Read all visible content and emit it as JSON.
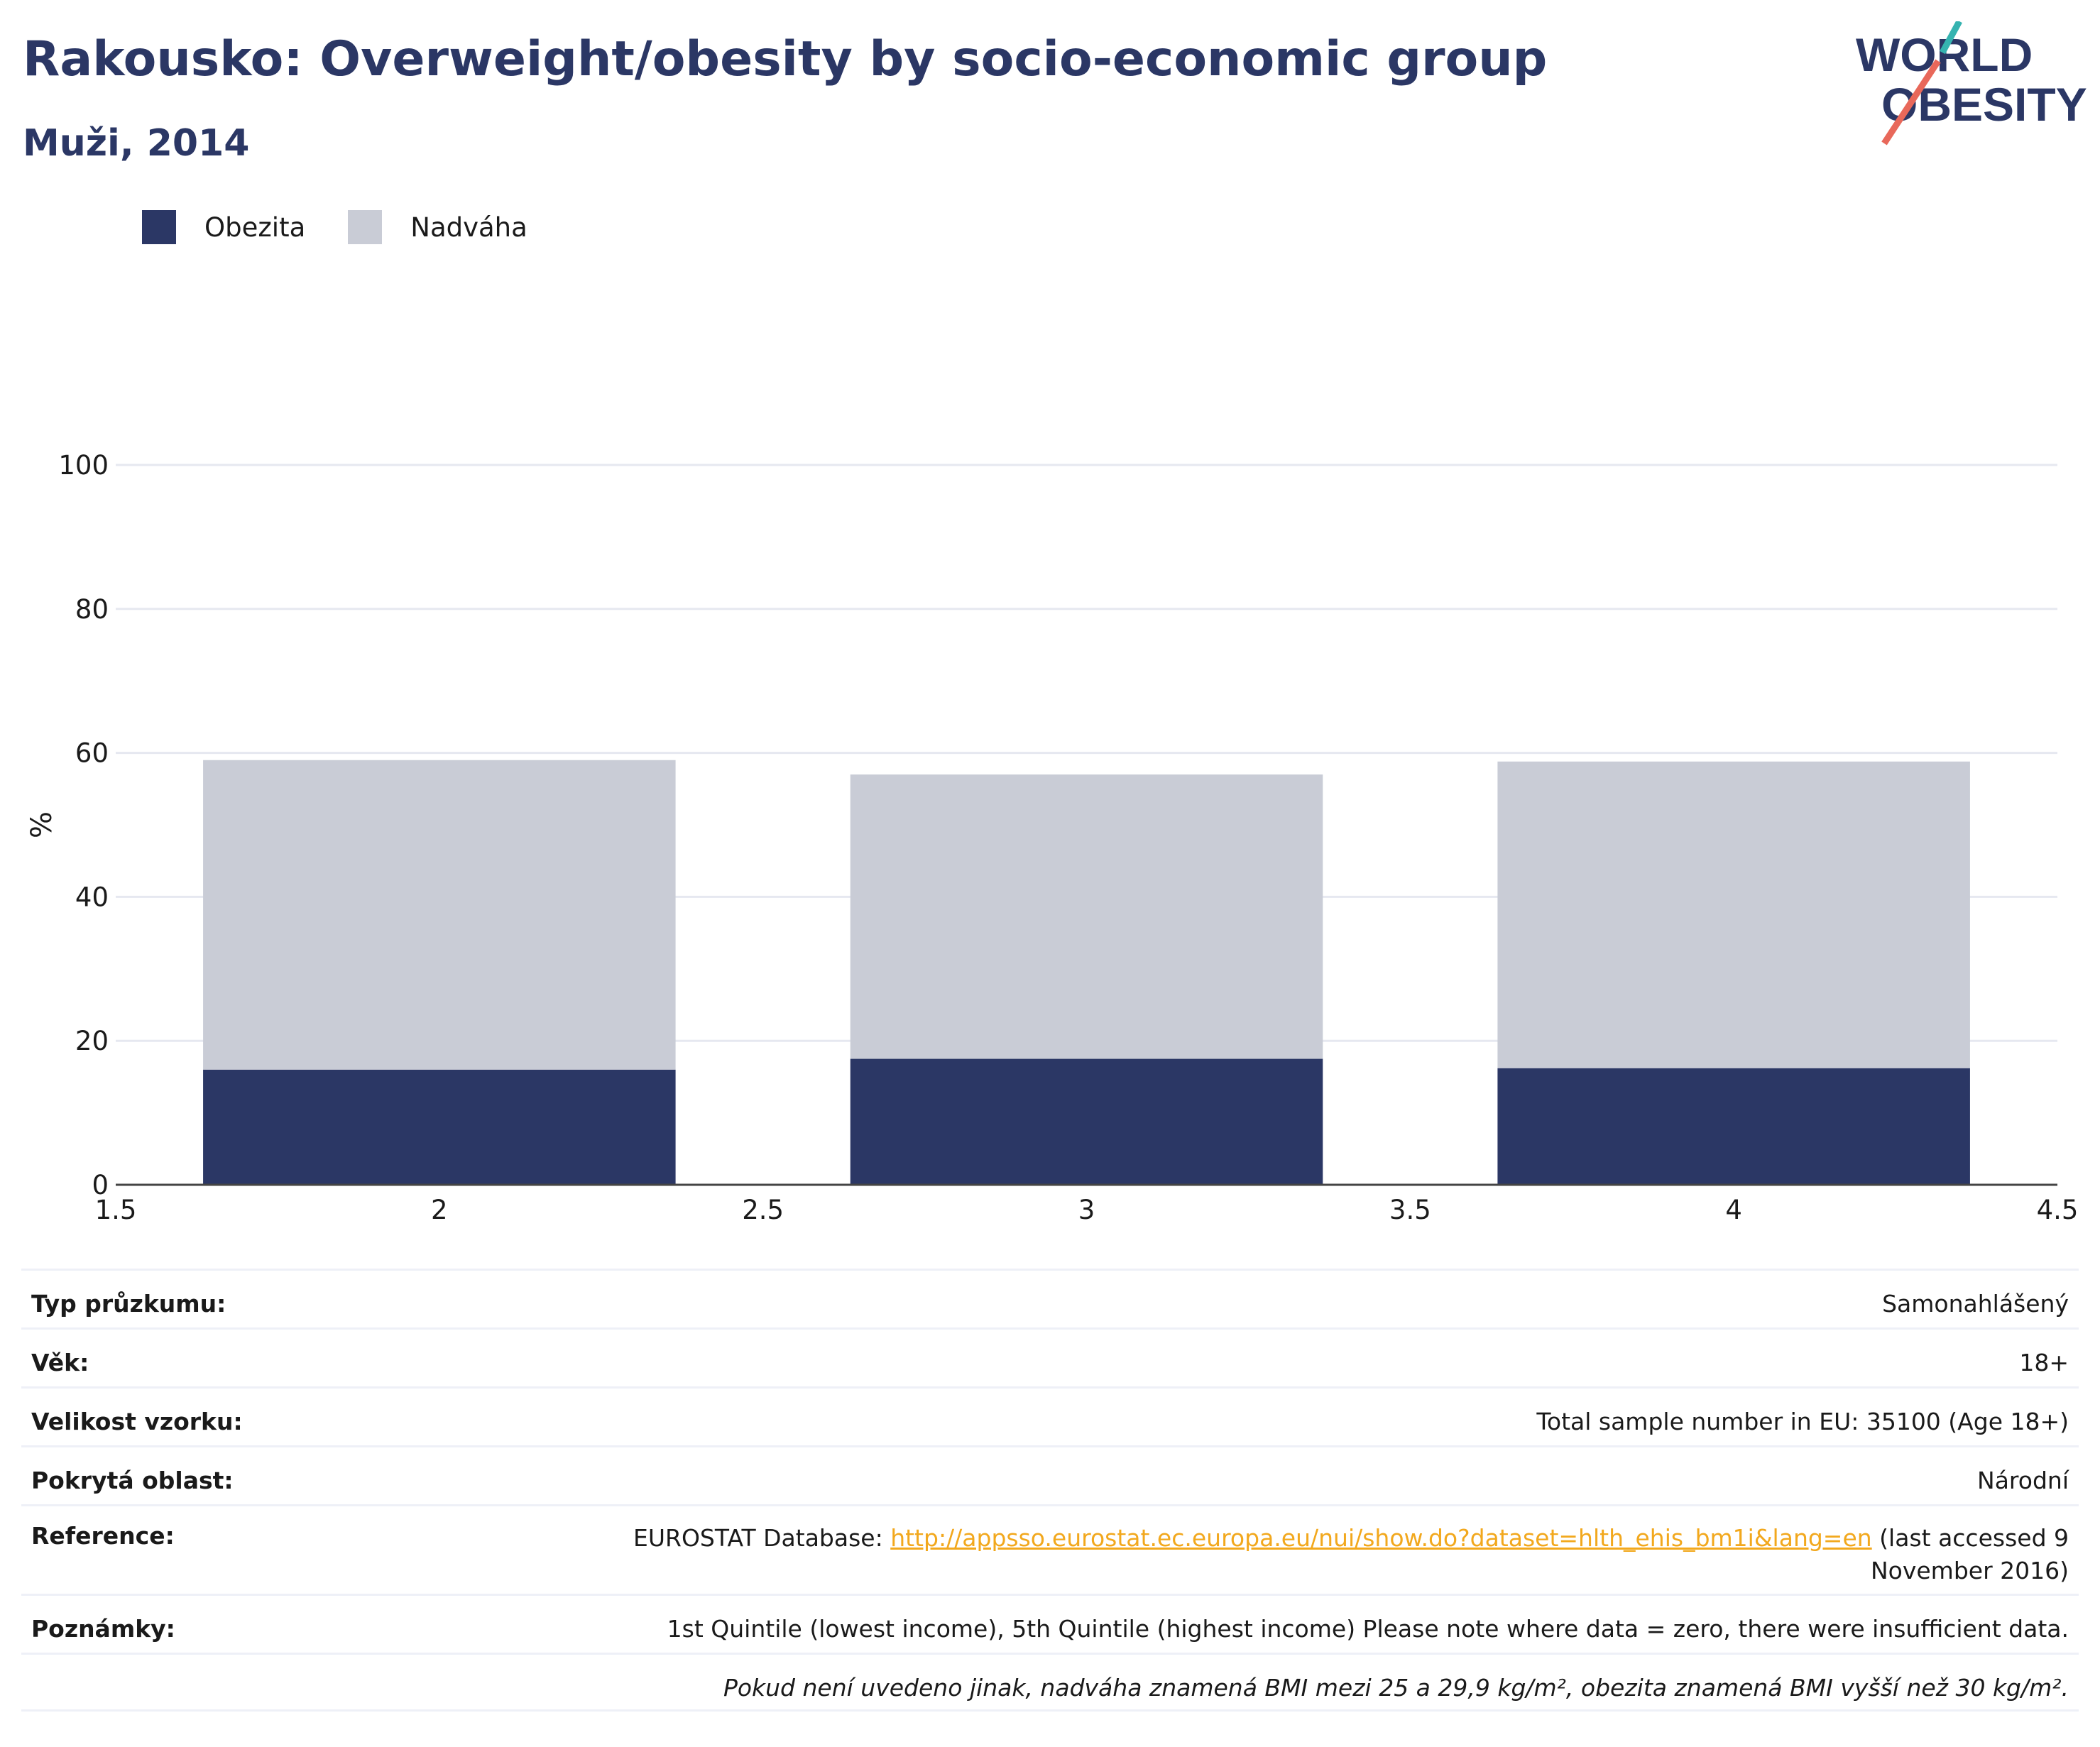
{
  "header": {
    "title": "Rakousko: Overweight/obesity by socio-economic group",
    "subtitle": "Muži, 2014",
    "logo_line1": "WORLD",
    "logo_line2": "OBESITY"
  },
  "legend": [
    {
      "label": "Obezita",
      "color": "#2b3765"
    },
    {
      "label": "Nadváha",
      "color": "#c9ccd6"
    }
  ],
  "chart_data": {
    "type": "bar",
    "stacked": true,
    "x": [
      2,
      3,
      4
    ],
    "xlim": [
      1.5,
      4.5
    ],
    "xticks": [
      "1.5",
      "2",
      "2.5",
      "3",
      "3.5",
      "4",
      "4.5"
    ],
    "ylabel": "%",
    "ylim": [
      0,
      100
    ],
    "yticks": [
      "0",
      "20",
      "40",
      "60",
      "80",
      "100"
    ],
    "grid": true,
    "legend_position": "top-left",
    "series": [
      {
        "name": "Obezita",
        "color": "#2b3765",
        "values": [
          16.0,
          17.5,
          16.2
        ]
      },
      {
        "name": "Nadváha",
        "color": "#c9ccd6",
        "values": [
          43.0,
          39.5,
          42.6
        ]
      }
    ]
  },
  "info": {
    "survey_type_label": "Typ průzkumu:",
    "survey_type_value": "Samonahlášený",
    "age_label": "Věk:",
    "age_value": "18+",
    "sample_label": "Velikost vzorku:",
    "sample_value": "Total sample number in EU: 35100 (Age 18+)",
    "area_label": "Pokrytá oblast:",
    "area_value": "Národní",
    "reference_label": "Reference:",
    "reference_prefix": "EUROSTAT Database: ",
    "reference_link": "http://appsso.eurostat.ec.europa.eu/nui/show.do?dataset=hlth_ehis_bm1i&lang=en",
    "reference_suffix": " (last accessed 9 November 2016)",
    "notes_label": "Poznámky:",
    "notes_value": "1st Quintile (lowest income), 5th Quintile (highest income) Please note where data = zero, there were insufficient data.",
    "definition": "Pokud není uvedeno jinak, nadváha znamená BMI mezi 25 a 29,9 kg/m², obezita znamená BMI vyšší než 30 kg/m²."
  }
}
